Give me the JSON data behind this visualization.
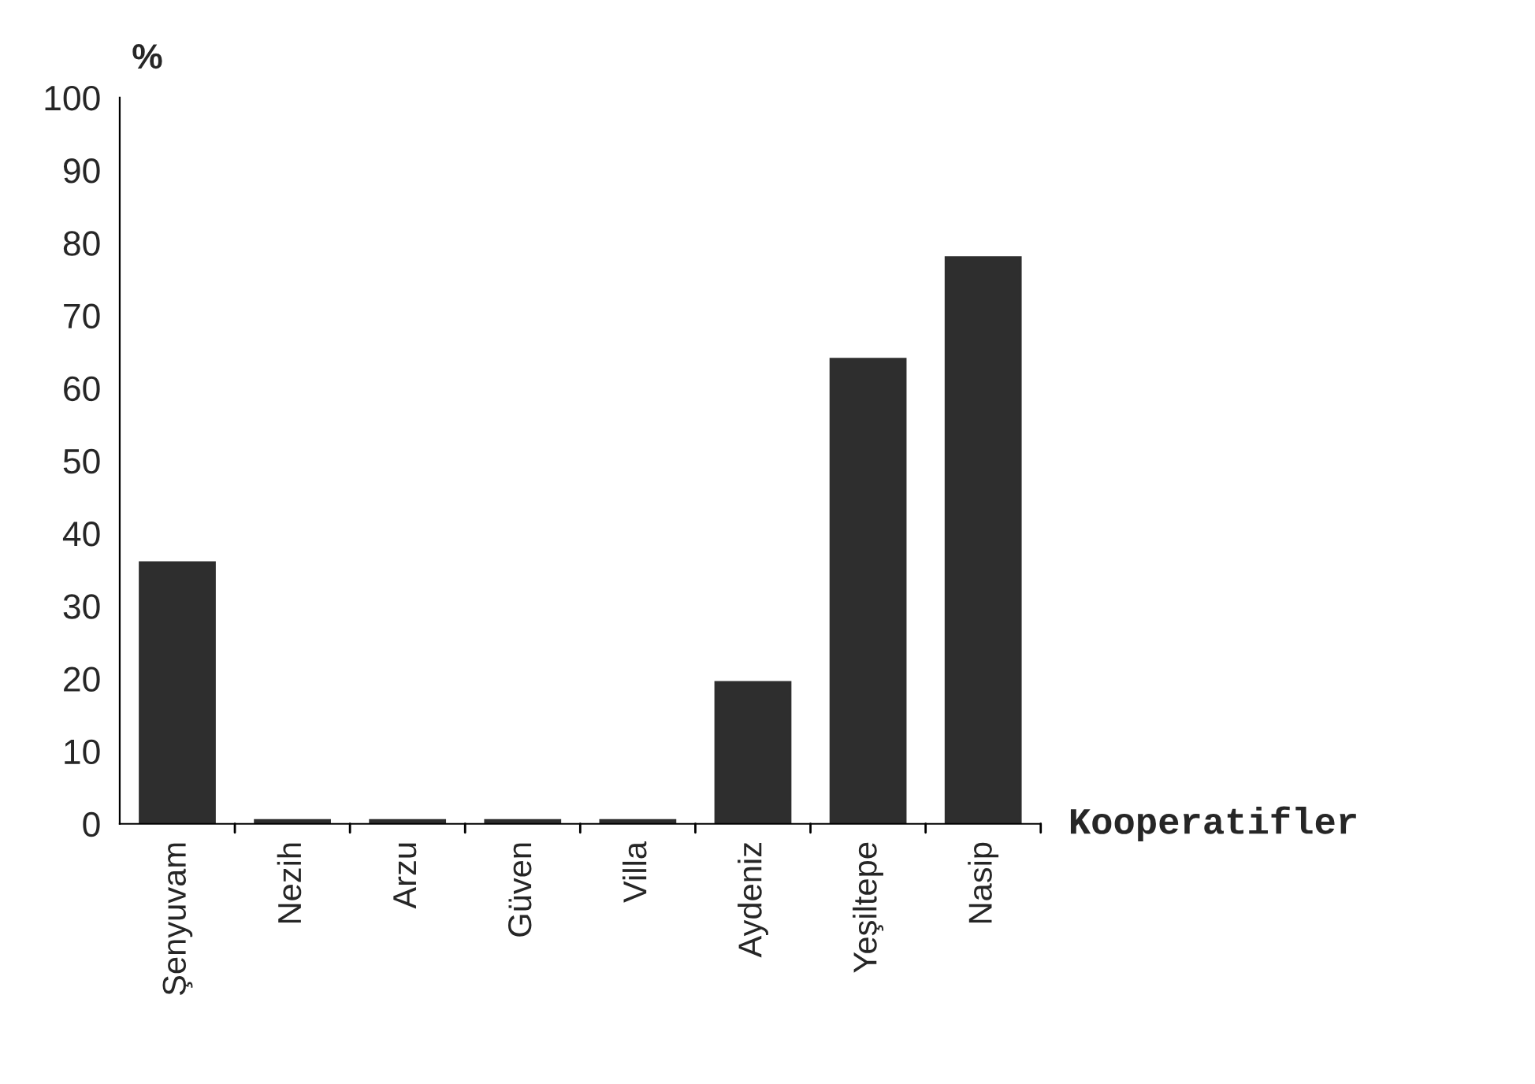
{
  "chart_data": {
    "type": "bar",
    "ylabel": "%",
    "xlabel": "Kooperatifler",
    "categories": [
      "Şenyuvam",
      "Nezih",
      "Arzu",
      "Güven",
      "Villa",
      "Aydeniz",
      "Yeşiltepe",
      "Nasip"
    ],
    "values": [
      36,
      0.5,
      0.5,
      0.5,
      0.5,
      19.5,
      64,
      78
    ],
    "color": "#2e2e2e",
    "ylim": [
      0,
      100
    ],
    "yticks": [
      0,
      10,
      20,
      30,
      40,
      50,
      60,
      70,
      80,
      90,
      100
    ],
    "grid": false,
    "legend": false
  }
}
